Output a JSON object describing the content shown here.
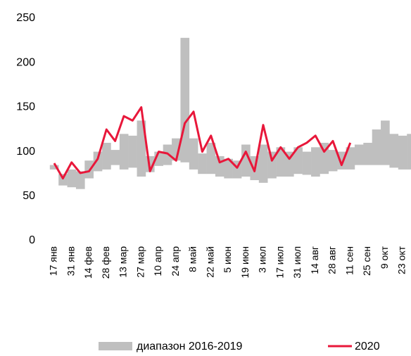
{
  "chart_data": {
    "type": "band-line",
    "categories": [
      "17 янв",
      null,
      "31 янв",
      null,
      "14 фев",
      null,
      "28 фев",
      null,
      "13 мар",
      null,
      "27 мар",
      null,
      "10 апр",
      null,
      "24 апр",
      null,
      "8 май",
      null,
      "22 май",
      null,
      "5 июн",
      null,
      "19 июн",
      null,
      "3 июл",
      null,
      "17 июл",
      null,
      "31 июл",
      null,
      "14 авг",
      null,
      "28 авг",
      null,
      "11 сен",
      null,
      "25 сен",
      null,
      "9 окт",
      null,
      "23 окт",
      null
    ],
    "series": [
      {
        "name": "диапазон 2016-2019",
        "color": "#bfbfbf",
        "low": [
          80,
          62,
          60,
          58,
          70,
          78,
          80,
          85,
          80,
          82,
          72,
          77,
          84,
          85,
          90,
          88,
          80,
          75,
          75,
          72,
          70,
          70,
          72,
          68,
          65,
          70,
          72,
          72,
          75,
          74,
          72,
          75,
          78,
          80,
          80,
          85,
          85,
          85,
          85,
          82,
          80,
          80
        ],
        "high": [
          85,
          75,
          80,
          78,
          90,
          100,
          110,
          102,
          120,
          118,
          135,
          95,
          100,
          108,
          115,
          228,
          115,
          98,
          110,
          95,
          92,
          90,
          108,
          95,
          108,
          100,
          105,
          100,
          105,
          100,
          105,
          110,
          102,
          100,
          105,
          108,
          110,
          125,
          135,
          120,
          118,
          120
        ]
      },
      {
        "name": "2020",
        "color": "#e8173a",
        "values": [
          87,
          70,
          88,
          76,
          78,
          92,
          125,
          112,
          140,
          135,
          150,
          78,
          100,
          98,
          90,
          132,
          145,
          100,
          118,
          88,
          92,
          82,
          100,
          78,
          130,
          90,
          105,
          92,
          105,
          110,
          118,
          100,
          112,
          85,
          110,
          null,
          null,
          null,
          null,
          null,
          null,
          null
        ]
      }
    ],
    "ylim": [
      0,
      250
    ],
    "yticks": [
      0,
      50,
      100,
      150,
      200,
      250
    ]
  }
}
